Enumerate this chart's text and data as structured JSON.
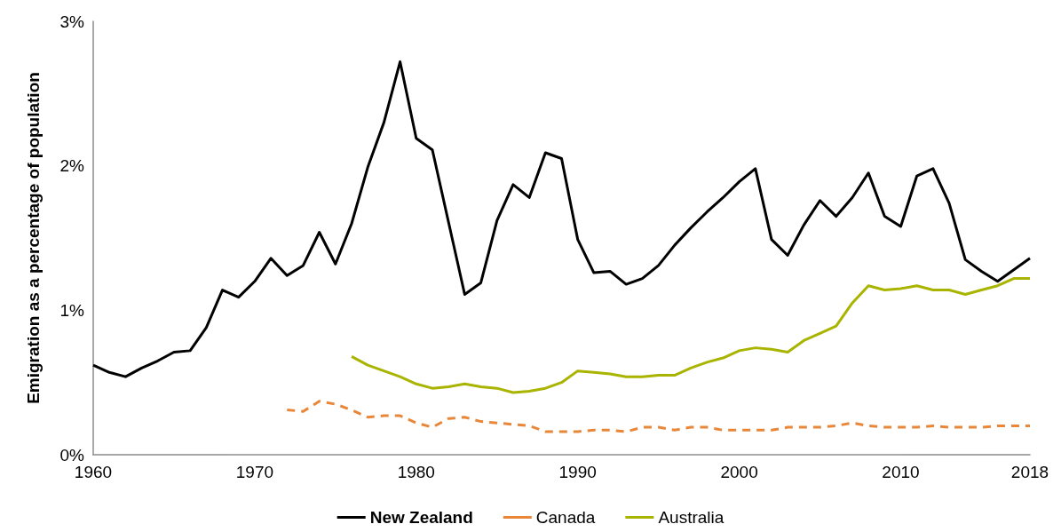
{
  "chart_data": {
    "type": "line",
    "ylabel": "Emigration as a percentage of population",
    "x": [
      1960,
      1961,
      1962,
      1963,
      1964,
      1965,
      1966,
      1967,
      1968,
      1969,
      1970,
      1971,
      1972,
      1973,
      1974,
      1975,
      1976,
      1977,
      1978,
      1979,
      1980,
      1981,
      1982,
      1983,
      1984,
      1985,
      1986,
      1987,
      1988,
      1989,
      1990,
      1991,
      1992,
      1993,
      1994,
      1995,
      1996,
      1997,
      1998,
      1999,
      2000,
      2001,
      2002,
      2003,
      2004,
      2005,
      2006,
      2007,
      2008,
      2009,
      2010,
      2011,
      2012,
      2013,
      2014,
      2015,
      2016,
      2017,
      2018
    ],
    "series": [
      {
        "name": "New Zealand",
        "color": "#000000",
        "line_style": "solid",
        "values": [
          0.62,
          0.57,
          0.54,
          0.6,
          0.65,
          0.71,
          0.72,
          0.88,
          1.14,
          1.09,
          1.2,
          1.36,
          1.24,
          1.31,
          1.54,
          1.32,
          1.6,
          1.99,
          2.3,
          2.72,
          2.19,
          2.11,
          1.61,
          1.11,
          1.19,
          1.62,
          1.87,
          1.78,
          2.09,
          2.05,
          1.49,
          1.26,
          1.27,
          1.18,
          1.22,
          1.31,
          1.45,
          1.57,
          1.68,
          1.78,
          1.89,
          1.98,
          1.49,
          1.38,
          1.59,
          1.76,
          1.65,
          1.78,
          1.95,
          1.65,
          1.58,
          1.93,
          1.98,
          1.74,
          1.35,
          1.27,
          1.2,
          1.28,
          1.36
        ]
      },
      {
        "name": "Canada",
        "color": "#e8873a",
        "line_style": "dashed",
        "values": [
          null,
          null,
          null,
          null,
          null,
          null,
          null,
          null,
          null,
          null,
          null,
          null,
          0.31,
          0.3,
          0.37,
          0.35,
          0.31,
          0.26,
          0.27,
          0.27,
          0.22,
          0.19,
          0.25,
          0.26,
          0.23,
          0.22,
          0.21,
          0.2,
          0.16,
          0.16,
          0.16,
          0.17,
          0.17,
          0.16,
          0.19,
          0.19,
          0.17,
          0.19,
          0.19,
          0.17,
          0.17,
          0.17,
          0.17,
          0.19,
          0.19,
          0.19,
          0.2,
          0.22,
          0.2,
          0.19,
          0.19,
          0.19,
          0.2,
          0.19,
          0.19,
          0.19,
          0.2,
          0.2,
          0.2
        ]
      },
      {
        "name": "Australia",
        "color": "#a9b400",
        "line_style": "solid",
        "values": [
          null,
          null,
          null,
          null,
          null,
          null,
          null,
          null,
          null,
          null,
          null,
          null,
          null,
          null,
          null,
          null,
          0.68,
          0.62,
          0.58,
          0.54,
          0.49,
          0.46,
          0.47,
          0.49,
          0.47,
          0.46,
          0.43,
          0.44,
          0.46,
          0.5,
          0.58,
          0.57,
          0.56,
          0.54,
          0.54,
          0.55,
          0.55,
          0.6,
          0.64,
          0.67,
          0.72,
          0.74,
          0.73,
          0.71,
          0.79,
          0.84,
          0.89,
          1.05,
          1.17,
          1.14,
          1.15,
          1.17,
          1.14,
          1.14,
          1.11,
          1.14,
          1.17,
          1.22,
          1.22
        ]
      }
    ],
    "xlim": [
      1960,
      2018
    ],
    "xticks": [
      1960,
      1970,
      1980,
      1990,
      2000,
      2010,
      2018
    ],
    "ylim": [
      0,
      3
    ],
    "yticks": [
      {
        "value": 0,
        "label": "0%"
      },
      {
        "value": 1,
        "label": "1%"
      },
      {
        "value": 2,
        "label": "2%"
      },
      {
        "value": 3,
        "label": "3%"
      }
    ],
    "grid": false,
    "legend": "bottom",
    "marker": "none"
  }
}
